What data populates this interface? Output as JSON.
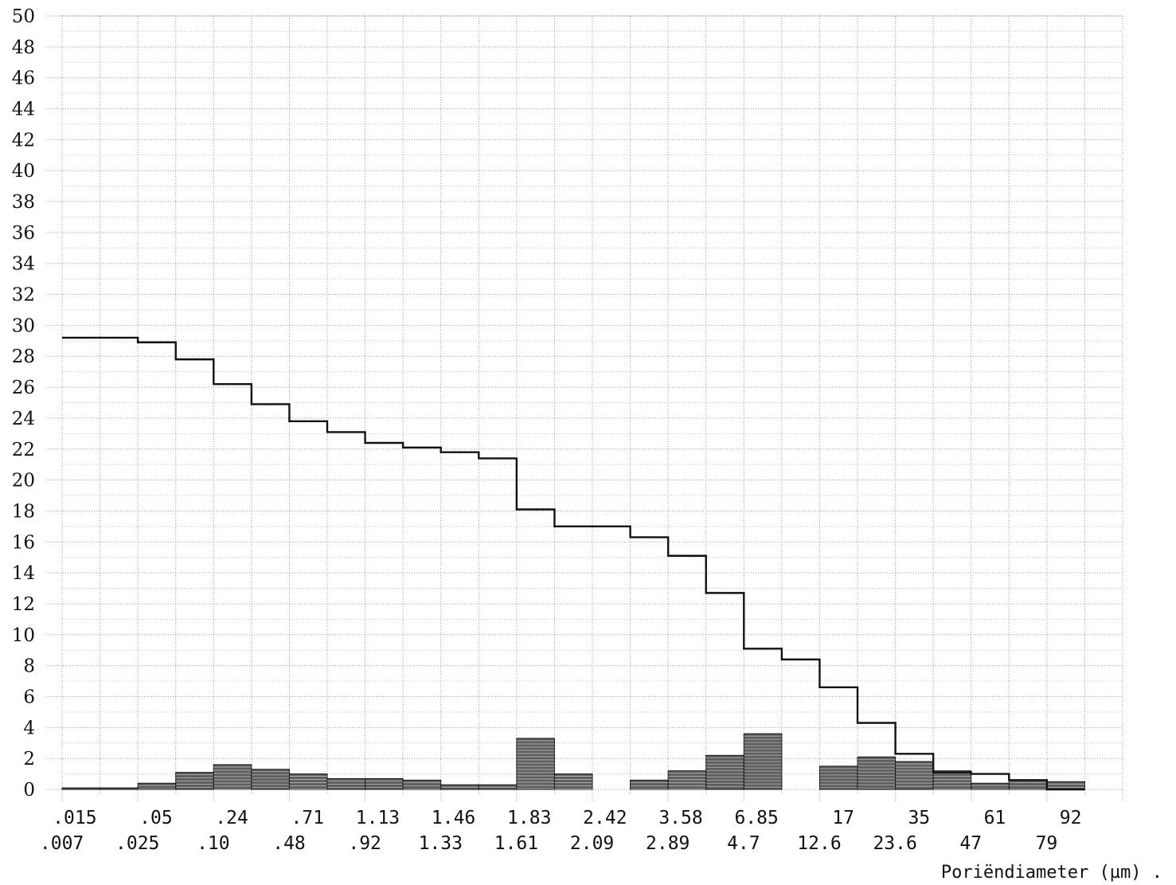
{
  "chart_data": {
    "type": "bar",
    "title": "",
    "xlabel": "Poriëndiameter (µm) .",
    "ylabel": "",
    "ylim": [
      0,
      50
    ],
    "y_ticks": [
      "0",
      "2",
      "4",
      "6",
      "8",
      "10",
      "12",
      "14",
      "16",
      "18",
      "20",
      "22",
      "24",
      "26",
      "28",
      "30",
      "32",
      "34",
      "36",
      "38",
      "40",
      "42",
      "44",
      "46",
      "48",
      "50"
    ],
    "x_ticks_top": [
      ".015",
      ".05",
      ".24",
      ".71",
      "1.13",
      "1.46",
      "1.83",
      "2.42",
      "3.58",
      "6.85",
      "17",
      "35",
      "61",
      "92"
    ],
    "x_ticks_bottom": [
      ".007",
      ".025",
      ".10",
      ".48",
      ".92",
      "1.33",
      "1.61",
      "2.09",
      "2.89",
      "4.7",
      "12.6",
      "23.6",
      "47",
      "79"
    ],
    "grid": true,
    "series": [
      {
        "type": "step",
        "values": [
          29.2,
          29.2,
          28.9,
          27.8,
          26.2,
          24.9,
          23.8,
          23.1,
          22.4,
          22.1,
          21.8,
          21.4,
          18.1,
          17.0,
          17.0,
          16.3,
          15.1,
          12.7,
          9.1,
          8.4,
          6.6,
          4.3,
          2.3,
          1.1,
          1.0,
          0.6,
          0.0
        ]
      },
      {
        "type": "bar",
        "values": [
          0.1,
          0.1,
          0.4,
          1.1,
          1.6,
          1.3,
          1.0,
          0.7,
          0.7,
          0.6,
          0.3,
          0.3,
          3.3,
          1.0,
          0.0,
          0.6,
          1.2,
          2.2,
          3.6,
          0.0,
          1.5,
          2.1,
          1.8,
          1.2,
          0.4,
          0.6,
          0.5
        ]
      }
    ]
  }
}
